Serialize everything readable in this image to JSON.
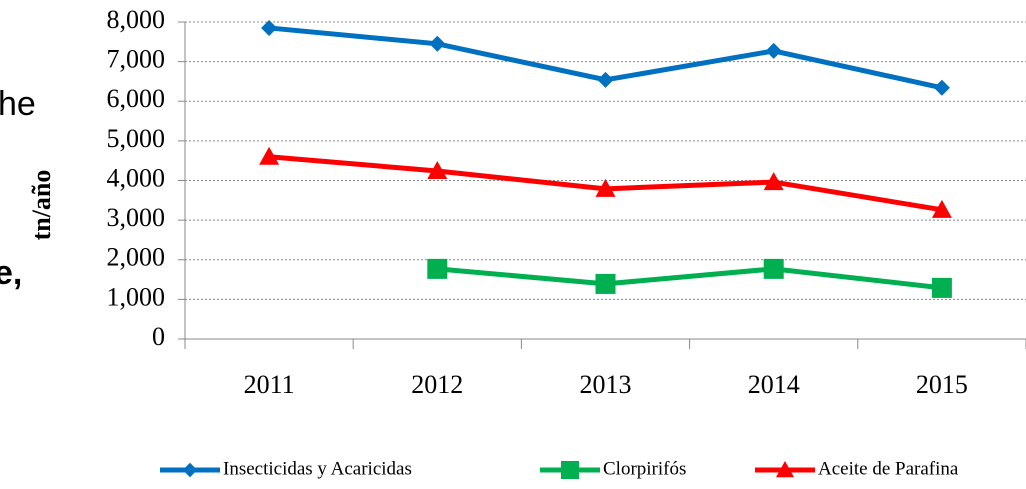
{
  "chart_data": {
    "type": "line",
    "ylabel": "tn/año",
    "overlay_text": [
      "he",
      "e,"
    ],
    "categories": [
      "2011",
      "2012",
      "2013",
      "2014",
      "2015"
    ],
    "series": [
      {
        "name": "Insecticidas y Acaricidas",
        "color": "#0070c0",
        "marker": "diamond",
        "values": [
          7850,
          7450,
          6540,
          7270,
          6340
        ]
      },
      {
        "name": "Clorpirifós",
        "color": "#00b050",
        "marker": "square",
        "values": [
          null,
          1770,
          1390,
          1770,
          1290
        ]
      },
      {
        "name": "Aceite de Parafina",
        "color": "#ff0000",
        "marker": "triangle",
        "values": [
          4600,
          4240,
          3790,
          3960,
          3260
        ]
      }
    ],
    "ylim": [
      0,
      8000
    ],
    "yticks": [
      0,
      {
        "value": 1000,
        "label": "1,000"
      },
      {
        "value": 2000,
        "label": "2,000"
      },
      {
        "value": 3000,
        "label": "3,000"
      },
      {
        "value": 4000,
        "label": "4,000"
      },
      {
        "value": 5000,
        "label": "5,000"
      },
      {
        "value": 6000,
        "label": "6,000"
      },
      {
        "value": 7000,
        "label": "7,000"
      },
      {
        "value": 8000,
        "label": "8,000"
      }
    ],
    "grid": true,
    "legend": "bottom"
  }
}
